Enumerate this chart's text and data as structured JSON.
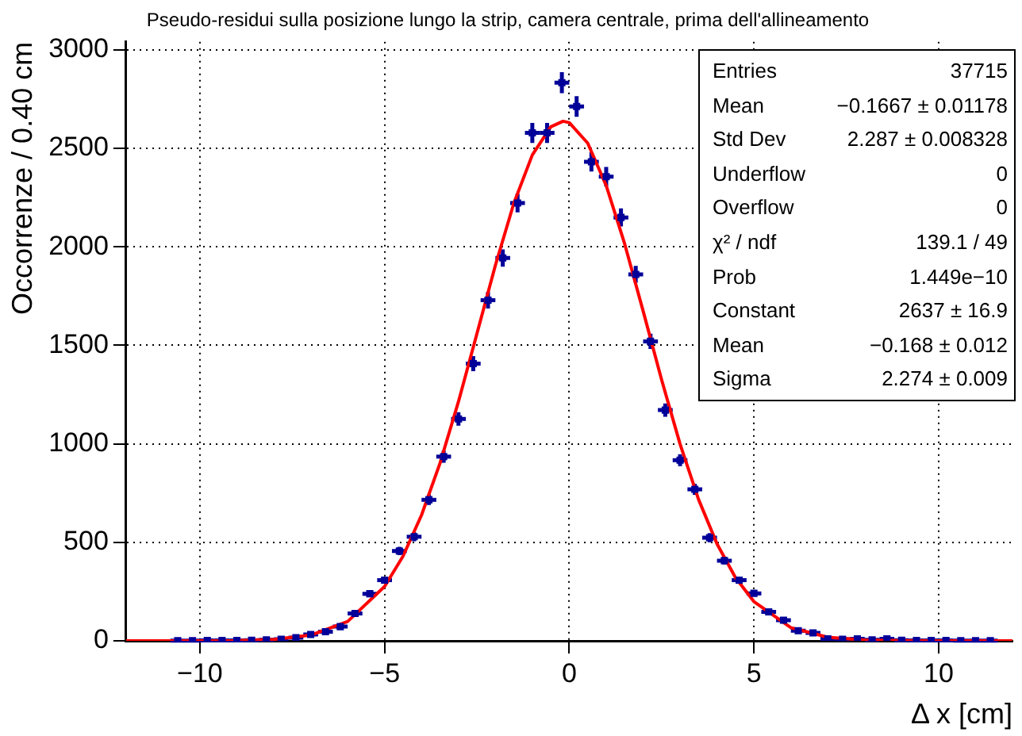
{
  "chart_data": {
    "type": "scatter",
    "title": "Pseudo-residui sulla posizione lungo la strip, camera centrale, prima dell'allineamento",
    "xlabel": "Δ x [cm]",
    "ylabel": "Occorrenze / 0.40 cm",
    "xlim": [
      -12,
      12
    ],
    "xticks": [
      -10,
      -5,
      0,
      5,
      10
    ],
    "ylim": [
      0,
      3040
    ],
    "yticks": [
      0,
      500,
      1000,
      1500,
      2000,
      2500,
      3000
    ],
    "grid": true,
    "legend": false,
    "series": [
      {
        "type": "scatter",
        "color": "#000099",
        "x": [
          -10.6,
          -10.2,
          -9.8,
          -9.4,
          -9.0,
          -8.6,
          -8.2,
          -7.8,
          -7.4,
          -7.0,
          -6.6,
          -6.2,
          -5.8,
          -5.4,
          -5.0,
          -4.6,
          -4.2,
          -3.8,
          -3.4,
          -3.0,
          -2.6,
          -2.2,
          -1.8,
          -1.4,
          -1.0,
          -0.6,
          -0.2,
          0.2,
          0.6,
          1.0,
          1.4,
          1.8,
          2.2,
          2.6,
          3.0,
          3.4,
          3.8,
          4.2,
          4.6,
          5.0,
          5.4,
          5.8,
          6.2,
          6.6,
          7.0,
          7.4,
          7.8,
          8.2,
          8.6,
          9.0,
          9.4,
          9.8,
          10.2,
          10.6,
          11.0,
          11.4
        ],
        "values": [
          1,
          1,
          2,
          2,
          2,
          3,
          5,
          8,
          16,
          32,
          46,
          72,
          139,
          239,
          308,
          456,
          528,
          716,
          935,
          1126,
          1407,
          1729,
          1943,
          2222,
          2578,
          2578,
          2833,
          2712,
          2431,
          2356,
          2149,
          1860,
          1520,
          1171,
          917,
          769,
          523,
          407,
          308,
          241,
          147,
          105,
          51,
          40,
          10,
          8,
          10,
          5,
          10,
          3,
          2,
          2,
          2,
          1,
          1,
          1
        ],
        "errors": [
          1,
          1,
          1,
          1,
          1,
          2,
          2,
          3,
          4,
          6,
          7,
          8,
          12,
          15,
          18,
          21,
          23,
          27,
          31,
          34,
          38,
          42,
          44,
          47,
          51,
          51,
          53,
          52,
          49,
          49,
          46,
          43,
          39,
          34,
          30,
          28,
          23,
          20,
          18,
          16,
          12,
          10,
          7,
          6,
          3,
          3,
          3,
          2,
          3,
          2,
          1,
          1,
          1,
          1,
          1,
          1
        ],
        "xerrors": [
          0.2,
          0.2,
          0.2,
          0.2,
          0.2,
          0.2,
          0.2,
          0.2,
          0.2,
          0.2,
          0.2,
          0.2,
          0.2,
          0.2,
          0.2,
          0.2,
          0.2,
          0.2,
          0.2,
          0.2,
          0.2,
          0.2,
          0.2,
          0.2,
          0.2,
          0.2,
          0.2,
          0.2,
          0.2,
          0.2,
          0.2,
          0.2,
          0.2,
          0.2,
          0.2,
          0.2,
          0.2,
          0.2,
          0.2,
          0.2,
          0.2,
          0.2,
          0.2,
          0.2,
          0.2,
          0.2,
          0.2,
          0.2,
          0.2,
          0.2,
          0.2,
          0.2,
          0.2,
          0.2,
          0.2,
          0.2
        ]
      },
      {
        "type": "line",
        "color": "#ff0000",
        "marker": "none",
        "line_style": "solid",
        "x": [
          -12,
          -10,
          -9,
          -8,
          -7,
          -6,
          -5,
          -4.5,
          -4,
          -3.5,
          -3,
          -2.5,
          -2,
          -1.5,
          -1,
          -0.5,
          -0.168,
          0,
          0.5,
          1,
          1.5,
          2,
          2.5,
          3,
          3.5,
          4,
          4.5,
          5,
          6,
          7,
          8,
          9,
          10,
          12
        ],
        "values": [
          0,
          0,
          1,
          7,
          29,
          98,
          276,
          430,
          638,
          901,
          1214,
          1559,
          1906,
          2221,
          2466,
          2609,
          2637,
          2630,
          2526,
          2311,
          2015,
          1674,
          1325,
          999,
          718,
          492,
          321,
          199,
          67,
          18,
          4,
          1,
          0,
          0
        ]
      }
    ],
    "annotations": [
      "Entries",
      "37715",
      "Mean",
      "−0.1667 ± 0.01178",
      "Std Dev",
      "2.287 ± 0.008328",
      "Underflow",
      "0",
      "Overflow",
      "0",
      "χ² / ndf",
      "139.1 / 49",
      "Prob",
      "1.449e−10",
      "Constant",
      "2637 ± 16.9",
      "Mean",
      "−0.168 ± 0.012",
      "Sigma",
      "2.274 ± 0.009"
    ]
  }
}
